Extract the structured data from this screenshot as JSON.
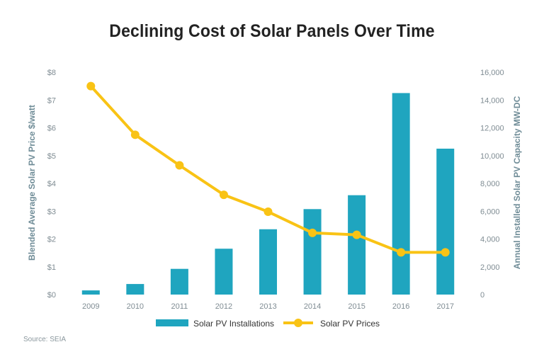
{
  "title": "Declining Cost of Solar Panels Over Time",
  "source": "Source: SEIA",
  "colors": {
    "bar": "#1fa5bf",
    "line": "#f9c315",
    "axis_text": "#7f8c93"
  },
  "chart_data": {
    "type": "bar+line",
    "title": "Declining Cost of Solar Panels Over Time",
    "categories": [
      "2009",
      "2010",
      "2011",
      "2012",
      "2013",
      "2014",
      "2015",
      "2016",
      "2017"
    ],
    "series": [
      {
        "name": "Solar PV Installations",
        "type": "bar",
        "axis": "right",
        "values": [
          300,
          760,
          1850,
          3300,
          4700,
          6150,
          7150,
          14500,
          10500
        ]
      },
      {
        "name": "Solar PV Prices",
        "type": "line",
        "axis": "left",
        "values": [
          7.5,
          5.75,
          4.65,
          3.59,
          2.98,
          2.22,
          2.15,
          1.52,
          1.52
        ]
      }
    ],
    "left_axis": {
      "label": "Blended Average Solar PV Price $/watt",
      "ticks": [
        "$0",
        "$1",
        "$2",
        "$3",
        "$4",
        "$5",
        "$6",
        "$7",
        "$8"
      ],
      "range": [
        0,
        8
      ]
    },
    "right_axis": {
      "label": "Annual Installed Solar PV Capacity MW-DC",
      "ticks": [
        "0",
        "2,000",
        "4,000",
        "6,000",
        "8,000",
        "10,000",
        "12,000",
        "14,000",
        "16,000"
      ],
      "range": [
        0,
        16000
      ]
    },
    "grid": false,
    "legend_position": "bottom"
  }
}
